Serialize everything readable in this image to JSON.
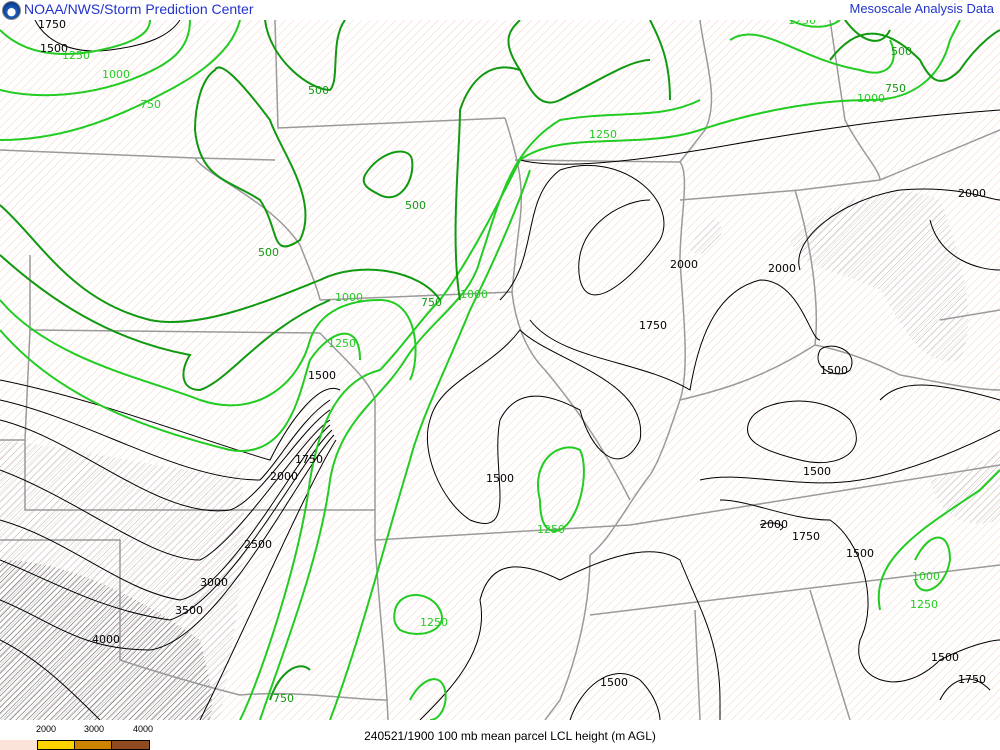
{
  "header": {
    "title": "NOAA/NWS/Storm Prediction Center",
    "right_title": "Mesoscale Analysis Data",
    "logo": "noaa-logo"
  },
  "footer": {
    "caption": "240521/1900 100 mb mean parcel LCL height (m AGL)",
    "legend": {
      "ticks": [
        "2000",
        "3000",
        "4000"
      ],
      "colors": [
        "#fce3d9",
        "#ffd200",
        "#cc8400",
        "#8f4a22"
      ]
    }
  },
  "map": {
    "colors": {
      "black_contour": "#000000",
      "green_contour": "#22cc22",
      "dark_green_contour": "#119911",
      "border": "#999999",
      "hatch": "#f2c9bc"
    },
    "black_labels": [
      "1750",
      "1500",
      "2000",
      "2000",
      "2000",
      "1750",
      "1500",
      "1500",
      "1750",
      "2000",
      "1500",
      "1500",
      "2000",
      "1750",
      "1500",
      "2500",
      "3000",
      "3500",
      "4000",
      "1500",
      "1500",
      "1750"
    ],
    "green_labels": [
      "1250",
      "1000",
      "750",
      "1250",
      "1250",
      "1000",
      "1000",
      "1250",
      "1250",
      "1250",
      "1000",
      "1250",
      "1000"
    ],
    "dark_green_labels": [
      "500",
      "500",
      "500",
      "750",
      "500",
      "750",
      "750"
    ]
  }
}
